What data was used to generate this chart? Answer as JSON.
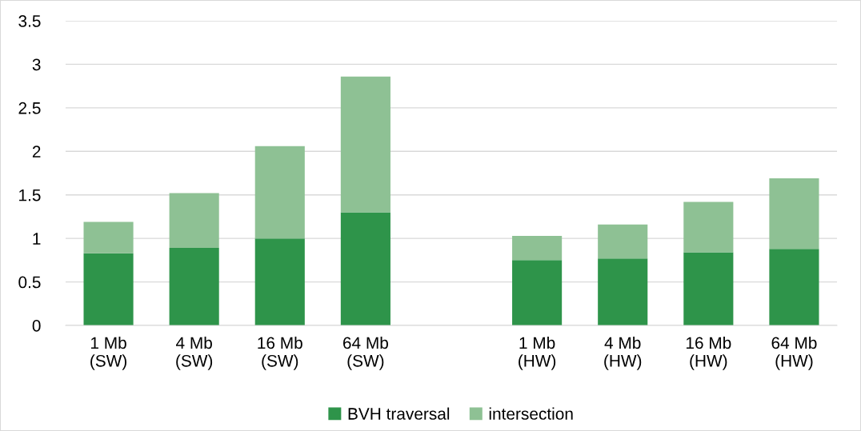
{
  "chart_data": {
    "type": "bar",
    "stacked": true,
    "categories": [
      "1 Mb\n(SW)",
      "4 Mb\n(SW)",
      "16 Mb\n(SW)",
      "64 Mb\n(SW)",
      null,
      "1 Mb\n(HW)",
      "4 Mb\n(HW)",
      "16 Mb\n(HW)",
      "64 Mb\n(HW)"
    ],
    "series": [
      {
        "name": "BVH traversal",
        "color": "#2e944a",
        "values": [
          0.83,
          0.89,
          1.0,
          1.3,
          null,
          0.75,
          0.77,
          0.84,
          0.88
        ]
      },
      {
        "name": "intersection",
        "color": "#8ec194",
        "values": [
          0.36,
          0.63,
          1.06,
          1.56,
          null,
          0.28,
          0.39,
          0.58,
          0.81
        ]
      }
    ],
    "ylim": [
      0,
      3.5
    ],
    "yticks": [
      0,
      0.5,
      1,
      1.5,
      2,
      2.5,
      3,
      3.5
    ],
    "grid": "y",
    "legend": "bottom"
  }
}
